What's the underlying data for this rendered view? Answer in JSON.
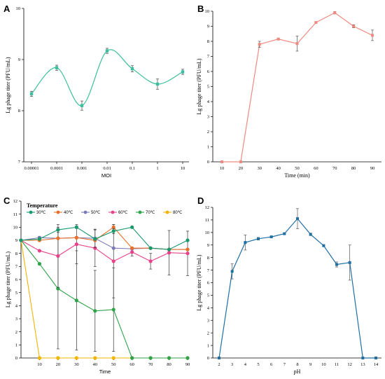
{
  "chart_data": [
    {
      "panel": "A",
      "type": "line",
      "smooth": true,
      "color": "#3bbf9e",
      "categories": [
        "0.00001",
        "0.0001",
        "0.001",
        "0.01",
        "0.1",
        "1",
        "10"
      ],
      "values": [
        8.33,
        8.84,
        8.1,
        9.17,
        8.82,
        8.52,
        8.76
      ],
      "errors": [
        0.05,
        0.05,
        0.09,
        0.05,
        0.06,
        0.1,
        0.05
      ],
      "xlabel": "MOI",
      "ylabel": "Lg phage titer (PFU/mL)",
      "ylim": [
        7,
        10
      ],
      "yticks": [
        "7",
        "8",
        "9",
        "10"
      ]
    },
    {
      "panel": "B",
      "type": "line",
      "color": "#f08a80",
      "categories": [
        "10",
        "20",
        "30",
        "40",
        "50",
        "60",
        "70",
        "80",
        "90"
      ],
      "values": [
        0,
        0,
        7.8,
        8.15,
        7.85,
        9.25,
        9.9,
        9.0,
        8.4
      ],
      "errors": [
        0,
        0,
        0.2,
        0.05,
        0.5,
        0.05,
        0.08,
        0.1,
        0.35
      ],
      "xlabel": "Time (min)",
      "ylabel": "Lg phage titer (PFU/mL)",
      "ylim": [
        0,
        10
      ],
      "yticks": [
        "0",
        "1",
        "2",
        "3",
        "4",
        "5",
        "6",
        "7",
        "8",
        "9",
        "10"
      ]
    },
    {
      "panel": "C",
      "type": "line",
      "x": [
        0,
        10,
        20,
        30,
        40,
        50,
        60,
        70,
        80,
        90
      ],
      "xticks": [
        "10",
        "20",
        "30",
        "40",
        "50",
        "60",
        "70",
        "80",
        "90"
      ],
      "xlabel": "Time",
      "ylabel": "Lg phage titer (PFU/mL)",
      "ylim": [
        0,
        12
      ],
      "yticks": [
        "0",
        "1",
        "2",
        "3",
        "4",
        "5",
        "6",
        "7",
        "8",
        "9",
        "10",
        "11",
        "12"
      ],
      "legend_title": "Temperature",
      "series": [
        {
          "name": "30℃",
          "color": "#1a9a6c",
          "values": [
            9.0,
            9.1,
            9.8,
            10.0,
            9.1,
            9.7,
            10.0,
            8.4,
            8.3,
            9.0
          ],
          "errors": [
            0,
            0,
            0.2,
            0.1,
            0,
            0.2,
            0,
            0,
            0,
            0
          ]
        },
        {
          "name": "40℃",
          "color": "#e8702a",
          "values": [
            9.0,
            9.0,
            9.15,
            9.2,
            9.0,
            10.0,
            8.4,
            8.4,
            8.3,
            8.3
          ],
          "errors": [
            0,
            0,
            0,
            0,
            0,
            0.2,
            0,
            0,
            0,
            0
          ]
        },
        {
          "name": "50℃",
          "color": "#7b7bb8",
          "values": [
            9.0,
            9.2,
            9.15,
            9.2,
            9.15,
            8.4,
            8.35,
            8.4,
            8.3,
            8.3
          ],
          "errors": [
            0,
            0.1,
            0,
            0,
            0.7,
            0,
            0,
            0,
            0,
            0
          ]
        },
        {
          "name": "60℃",
          "color": "#e8438a",
          "values": [
            9.0,
            8.2,
            7.8,
            8.7,
            8.4,
            7.4,
            8.1,
            7.4,
            8.05,
            8.0
          ],
          "errors": [
            0,
            0,
            2.4,
            1.5,
            1.4,
            2.8,
            0.3,
            0.6,
            1.7,
            1.7
          ]
        },
        {
          "name": "70℃",
          "color": "#2ea34a",
          "values": [
            9.0,
            7.2,
            5.3,
            4.4,
            3.6,
            3.7,
            0,
            0,
            0,
            0
          ],
          "errors": [
            0,
            0,
            4.6,
            3.8,
            3.1,
            3.2,
            0,
            0,
            0,
            0
          ]
        },
        {
          "name": "80℃",
          "color": "#f2b400",
          "values": [
            9.0,
            0,
            0,
            0,
            0,
            0,
            0,
            0,
            0,
            0
          ],
          "errors": [
            0,
            0,
            0,
            0,
            0,
            0,
            0,
            0,
            0,
            0
          ]
        }
      ]
    },
    {
      "panel": "D",
      "type": "line",
      "color": "#1f6fa5",
      "categories": [
        "2",
        "3",
        "4",
        "5",
        "6",
        "7",
        "8",
        "9",
        "10",
        "11",
        "12",
        "13",
        "14"
      ],
      "values": [
        0,
        6.9,
        9.2,
        9.5,
        9.65,
        9.9,
        11.1,
        9.85,
        8.95,
        7.45,
        7.6,
        0,
        0
      ],
      "errors": [
        0,
        0.6,
        0.6,
        0.1,
        0.05,
        0.05,
        0.8,
        0.1,
        0.05,
        0.2,
        1.4,
        0,
        0
      ],
      "xlabel": "pH",
      "ylabel": "Lg phage titer (PFU/mL)",
      "ylim": [
        0,
        12
      ],
      "yticks": [
        "0",
        "1",
        "2",
        "3",
        "4",
        "5",
        "6",
        "7",
        "8",
        "9",
        "10",
        "11",
        "12"
      ]
    }
  ]
}
